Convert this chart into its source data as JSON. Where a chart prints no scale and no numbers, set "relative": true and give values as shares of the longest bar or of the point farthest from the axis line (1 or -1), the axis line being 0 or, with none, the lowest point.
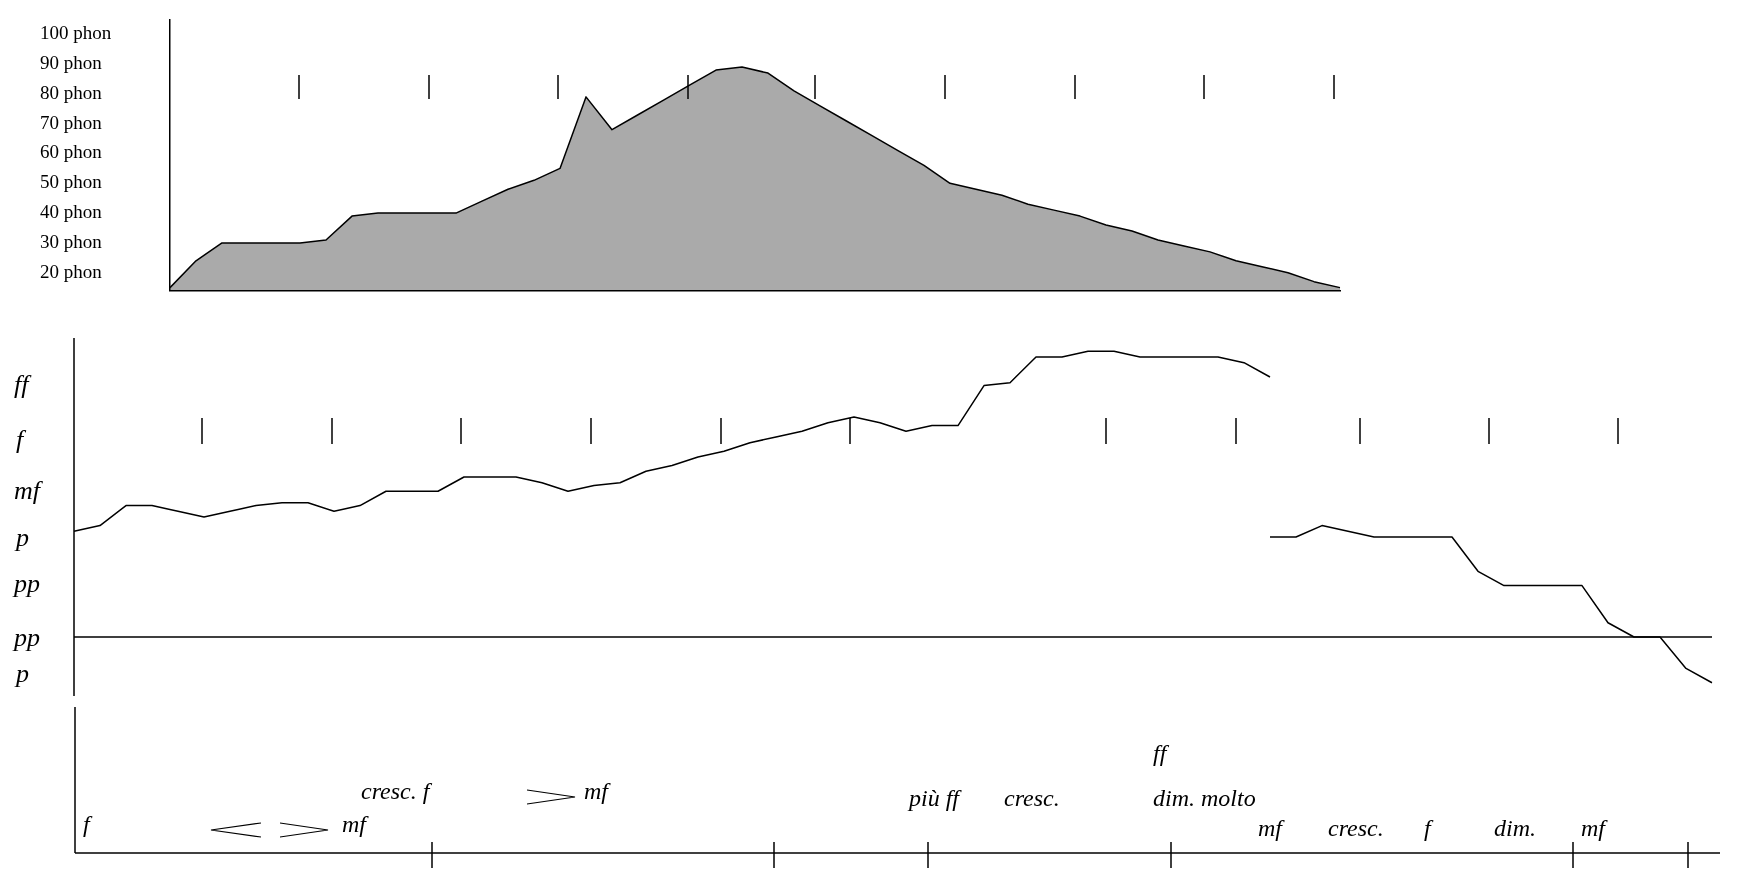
{
  "chart_data": [
    {
      "type": "area",
      "ylim": [
        14,
        105
      ],
      "marker": "none",
      "tick_labels": "y",
      "categories": [
        null,
        null,
        null,
        null,
        null,
        null,
        null,
        null,
        null,
        null,
        null,
        null,
        null,
        null,
        null,
        null,
        null,
        null,
        null,
        null,
        null,
        null,
        null,
        null,
        null,
        null,
        null,
        null,
        null,
        null,
        null,
        null,
        null,
        null,
        null,
        null,
        null,
        null,
        null,
        null,
        null,
        null,
        null,
        null,
        null,
        null
      ],
      "yticks": [
        {
          "value": 20,
          "label": "20 phon"
        },
        {
          "value": 30,
          "label": "30 phon"
        },
        {
          "value": 40,
          "label": "40 phon"
        },
        {
          "value": 50,
          "label": "50 phon"
        },
        {
          "value": 60,
          "label": "60 phon"
        },
        {
          "value": 70,
          "label": "70 phon"
        },
        {
          "value": 80,
          "label": "80 phon"
        },
        {
          "value": 90,
          "label": "90 phon"
        },
        {
          "value": 100,
          "label": "100 phon"
        }
      ],
      "series": [
        {
          "color": "#000000",
          "values": [
            15,
            24,
            30,
            30,
            30,
            30,
            31,
            39,
            40,
            40,
            40,
            40,
            44,
            48,
            51,
            55,
            79,
            68,
            73,
            78,
            83,
            88,
            89,
            87,
            81,
            76,
            71,
            66,
            61,
            56,
            50,
            48,
            46,
            43,
            41,
            39,
            36,
            34,
            31,
            29,
            27,
            24,
            22,
            20,
            17,
            15
          ]
        }
      ]
    },
    {
      "type": "line",
      "relative": true,
      "marker": "none",
      "categories": [
        null,
        null,
        null,
        null,
        null,
        null,
        null,
        null,
        null,
        null,
        null,
        null,
        null,
        null,
        null,
        null,
        null,
        null,
        null,
        null,
        null,
        null,
        null,
        null,
        null,
        null,
        null,
        null,
        null,
        null,
        null,
        null,
        null,
        null,
        null,
        null,
        null,
        null,
        null,
        null,
        null,
        null,
        null,
        null,
        null,
        null,
        null,
        null,
        null,
        null,
        null,
        null,
        null,
        null,
        null,
        null,
        null,
        null,
        null,
        null,
        null,
        null,
        null,
        null
      ],
      "annotations": [
        "ff",
        "f",
        "mf",
        "p",
        "pp",
        "pp",
        "p"
      ],
      "series": [
        {
          "color": "#000000",
          "values": [
            0.37,
            0.39,
            0.46,
            0.46,
            0.44,
            0.42,
            0.44,
            0.46,
            0.47,
            0.47,
            0.44,
            0.46,
            0.51,
            0.51,
            0.51,
            0.56,
            0.56,
            0.56,
            0.54,
            0.51,
            0.53,
            0.54,
            0.58,
            0.6,
            0.63,
            0.65,
            0.68,
            0.7,
            0.72,
            0.75,
            0.77,
            0.75,
            0.72,
            0.74,
            0.74,
            0.88,
            0.89,
            0.98,
            0.98,
            1,
            1,
            0.98,
            0.98,
            0.98,
            0.98,
            0.96,
            0.91,
            null,
            null,
            null,
            null,
            null,
            null,
            null,
            null,
            null,
            null,
            null,
            null,
            null,
            null,
            null,
            null,
            null
          ]
        },
        {
          "color": "#000000",
          "values": [
            null,
            null,
            null,
            null,
            null,
            null,
            null,
            null,
            null,
            null,
            null,
            null,
            null,
            null,
            null,
            null,
            null,
            null,
            null,
            null,
            null,
            null,
            null,
            null,
            null,
            null,
            null,
            null,
            null,
            null,
            null,
            null,
            null,
            null,
            null,
            null,
            null,
            null,
            null,
            null,
            null,
            null,
            null,
            null,
            null,
            null,
            0.35,
            0.35,
            0.39,
            0.37,
            0.35,
            0.35,
            0.35,
            0.35,
            0.23,
            0.18,
            0.18,
            0.18,
            0.18,
            0.05,
            0,
            0,
            -0.11,
            -0.16
          ]
        }
      ]
    },
    {
      "type": "other",
      "annotations": [
        "f",
        "mf",
        "cresc. f",
        "mf",
        "più ff",
        "cresc.",
        "ff",
        "dim. molto",
        "mf",
        "cresc.",
        "f",
        "dim.",
        "mf"
      ]
    }
  ]
}
